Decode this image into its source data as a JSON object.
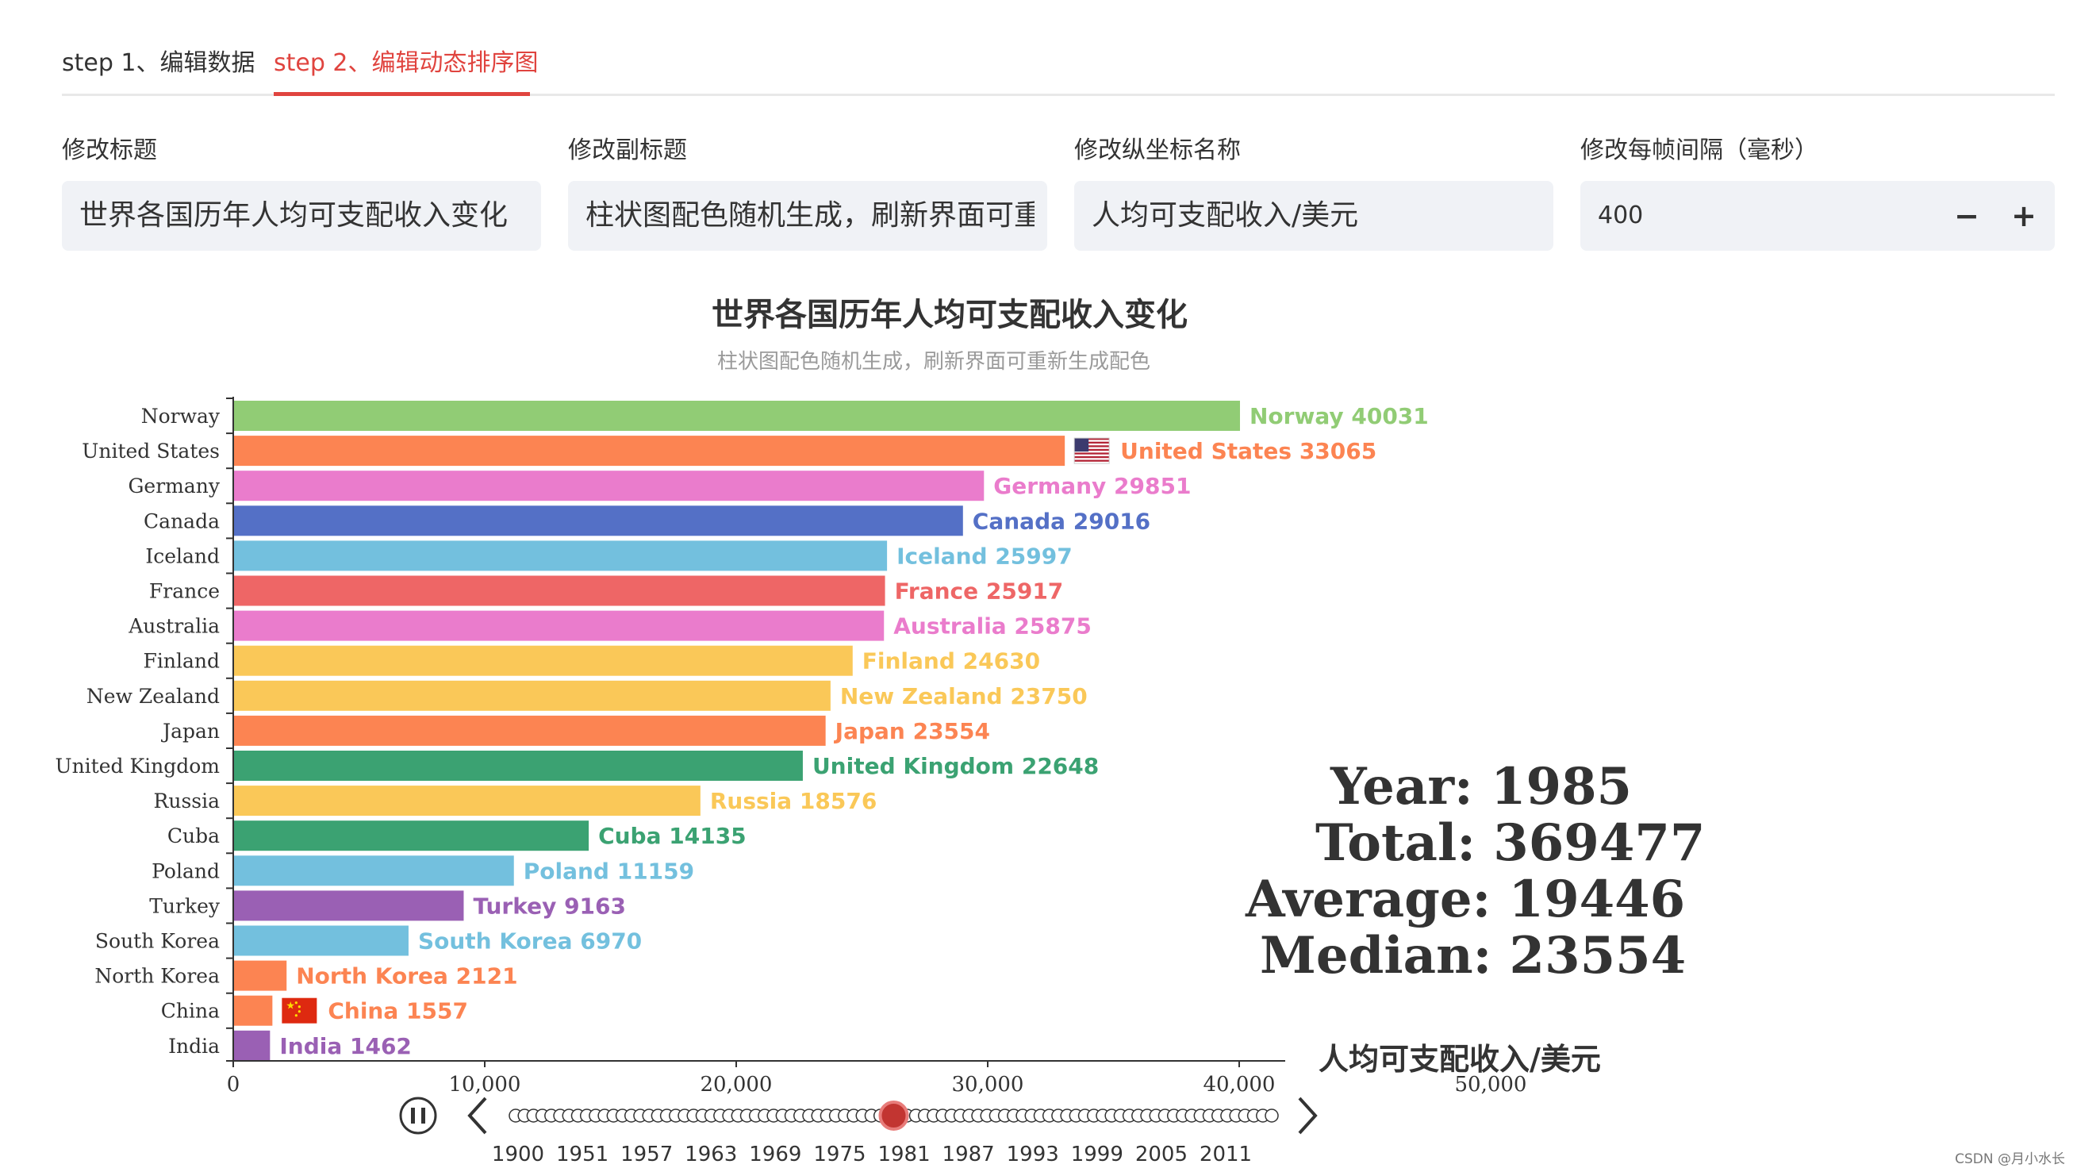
{
  "tabs": [
    {
      "label": "step 1、编辑数据",
      "active": false
    },
    {
      "label": "step 2、编辑动态排序图",
      "active": true
    }
  ],
  "form": {
    "title_label": "修改标题",
    "title_value": "世界各国历年人均可支配收入变化",
    "subtitle_label": "修改副标题",
    "subtitle_value": "柱状图配色随机生成，刷新界面可重",
    "ylabel_label": "修改纵坐标名称",
    "ylabel_value": "人均可支配收入/美元",
    "interval_label": "修改每帧间隔（毫秒）",
    "interval_value": "400",
    "minus": "−",
    "plus": "+"
  },
  "chart_data": {
    "type": "bar",
    "orientation": "horizontal",
    "title": "世界各国历年人均可支配收入变化",
    "subtitle": "柱状图配色随机生成，刷新界面可重新生成配色",
    "axis_name": "人均可支配收入/美元",
    "xlim": [
      0,
      50000
    ],
    "x_ticks": [
      "0",
      "10,000",
      "20,000",
      "30,000",
      "40,000",
      "50,000"
    ],
    "categories": [
      "Norway",
      "United States",
      "Germany",
      "Canada",
      "Iceland",
      "France",
      "Australia",
      "Finland",
      "New Zealand",
      "Japan",
      "United Kingdom",
      "Russia",
      "Cuba",
      "Poland",
      "Turkey",
      "South Korea",
      "North Korea",
      "China",
      "India"
    ],
    "values": [
      40031,
      33065,
      29851,
      29016,
      25997,
      25917,
      25875,
      24630,
      23750,
      23554,
      22648,
      18576,
      14135,
      11159,
      9163,
      6970,
      2121,
      1557,
      1462
    ],
    "colors": [
      "#91cc75",
      "#fc8452",
      "#ea7ccc",
      "#5470c6",
      "#73c0de",
      "#ee6666",
      "#ea7ccc",
      "#fac858",
      "#fac858",
      "#fc8452",
      "#3ba272",
      "#fac858",
      "#3ba272",
      "#73c0de",
      "#9a60b4",
      "#73c0de",
      "#fc8452",
      "#fc8452",
      "#9a60b4"
    ],
    "flag_icons": {
      "United States": "us-flag-icon",
      "China": "china-flag-icon"
    }
  },
  "stats": {
    "year": "Year: 1985",
    "total": "Total: 369477",
    "average": "Average: 19446",
    "median": "Median: 23554"
  },
  "timeline": {
    "labels": [
      "1900",
      "1951",
      "1957",
      "1963",
      "1969",
      "1975",
      "1981",
      "1987",
      "1993",
      "1999",
      "2005",
      "2011"
    ],
    "current_fraction": 0.5,
    "play_state": "playing",
    "icons": [
      "pause-icon",
      "chevron-left-icon",
      "chevron-right-icon"
    ]
  },
  "watermark": "CSDN @月小水长"
}
